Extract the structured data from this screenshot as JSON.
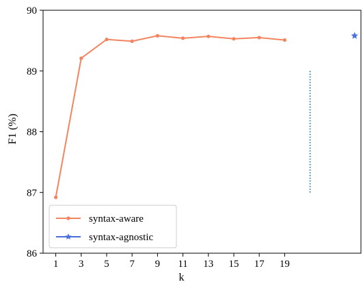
{
  "chart_data": {
    "type": "line",
    "xlabel": "k",
    "ylabel": "F1 (%)",
    "ylim": [
      86,
      90
    ],
    "xlim": [
      0,
      25
    ],
    "xticks": [
      1,
      3,
      5,
      7,
      9,
      11,
      13,
      15,
      17,
      19
    ],
    "yticks": [
      86,
      87,
      88,
      89,
      90
    ],
    "grid": false,
    "legend": "lower-left",
    "series": [
      {
        "name": "syntax-aware",
        "color": "#f4845f",
        "marker": "circle",
        "x": [
          1,
          3,
          5,
          7,
          9,
          11,
          13,
          15,
          17,
          19
        ],
        "values": [
          86.92,
          89.21,
          89.52,
          89.49,
          89.58,
          89.54,
          89.57,
          89.53,
          89.55,
          89.51
        ]
      },
      {
        "name": "syntax-agnostic",
        "color": "#4a6fdc",
        "marker": "star",
        "x": [
          24.5
        ],
        "values": [
          89.58
        ]
      }
    ],
    "annotations": [
      {
        "type": "dotted-vertical-line",
        "color": "#2a7fb8",
        "x": 21,
        "y_range": [
          87.0,
          89.0
        ]
      }
    ]
  }
}
